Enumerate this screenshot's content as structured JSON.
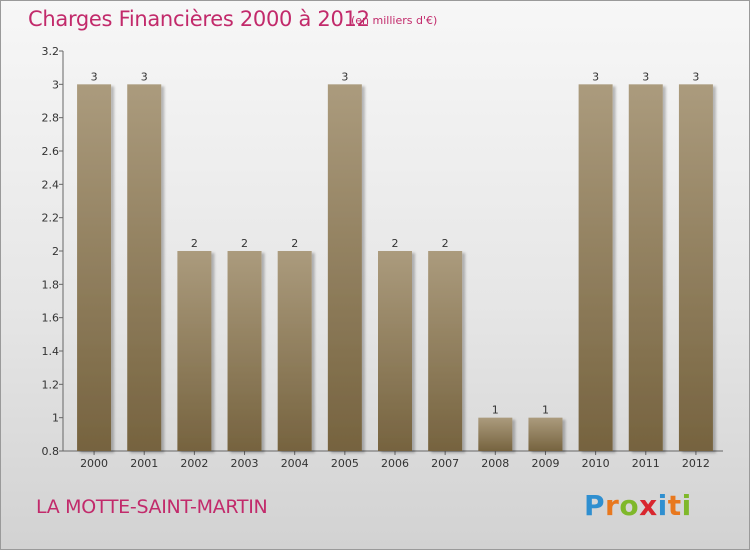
{
  "title": "Charges Financières 2000 à 2012",
  "subtitle": "(en milliers d'€)",
  "commune": "LA MOTTE-SAINT-MARTIN",
  "logo": {
    "letters": [
      "P",
      "r",
      "o",
      "x",
      "i",
      "t",
      "i"
    ],
    "colors": [
      "#2f8fd0",
      "#e8781e",
      "#7fb82a",
      "#d8262e",
      "#2f8fd0",
      "#e8781e",
      "#7fb82a"
    ]
  },
  "colors": {
    "bar_top": "#ab9b7d",
    "bar_bottom": "#76633f",
    "title": "#c22a6b"
  },
  "chart_data": {
    "type": "bar",
    "title": "Charges Financières 2000 à 2012",
    "subtitle": "(en milliers d'€)",
    "xlabel": "",
    "ylabel": "",
    "categories": [
      "2000",
      "2001",
      "2002",
      "2003",
      "2004",
      "2005",
      "2006",
      "2007",
      "2008",
      "2009",
      "2010",
      "2011",
      "2012"
    ],
    "values": [
      3,
      3,
      2,
      2,
      2,
      3,
      2,
      2,
      1,
      1,
      3,
      3,
      3
    ],
    "value_labels": [
      "3",
      "3",
      "2",
      "2",
      "2",
      "3",
      "2",
      "2",
      "1",
      "1",
      "3",
      "3",
      "3"
    ],
    "ylim": [
      0.8,
      3.2
    ],
    "yticks": [
      0.8,
      1,
      1.2,
      1.4,
      1.6,
      1.8,
      2,
      2.2,
      2.4,
      2.6,
      2.8,
      3,
      3.2
    ],
    "ytick_labels": [
      "0.8",
      "1",
      "1.2",
      "1.4",
      "1.6",
      "1.8",
      "2",
      "2.2",
      "2.4",
      "2.6",
      "2.8",
      "3",
      "3.2"
    ],
    "grid": false,
    "legend": "none"
  }
}
